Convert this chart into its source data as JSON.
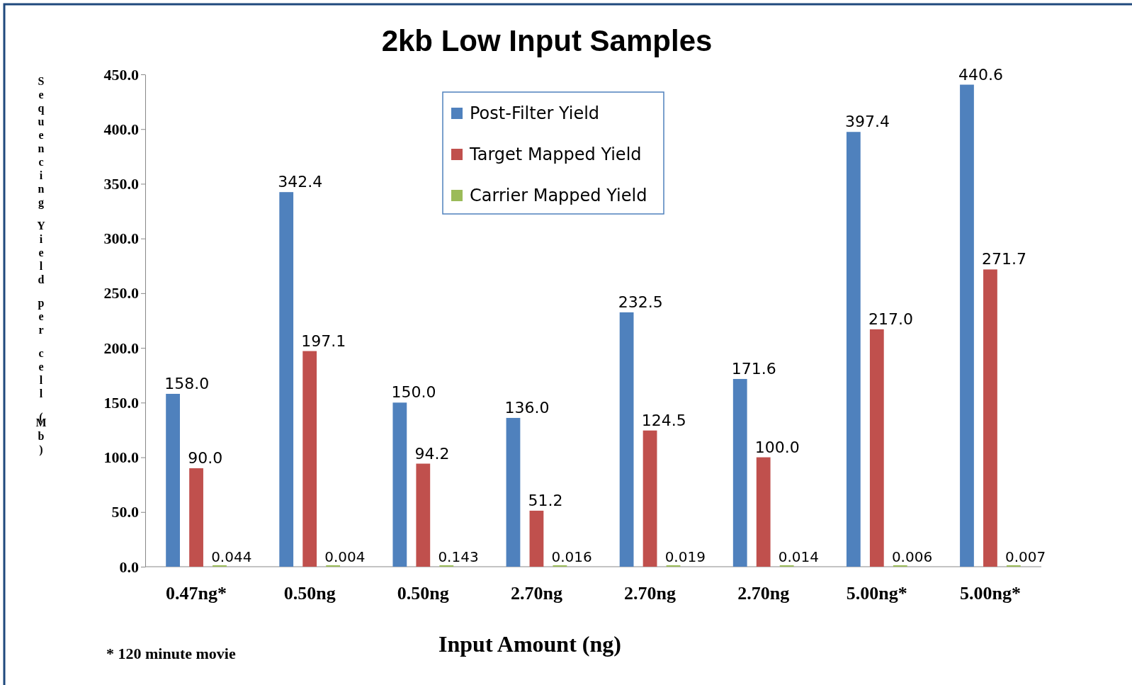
{
  "chart_data": {
    "type": "bar",
    "title": "2kb Low Input Samples",
    "xlabel": "Input Amount (ng)",
    "ylabel": "Sequencing Yield per cell (Mb)",
    "categories": [
      "0.47ng*",
      "0.50ng",
      "0.50ng",
      "2.70ng",
      "2.70ng",
      "2.70ng",
      "5.00ng*",
      "5.00ng*"
    ],
    "series": [
      {
        "name": "Post-Filter Yield",
        "color": "#4f81bd",
        "values": [
          158.0,
          342.4,
          150.0,
          136.0,
          232.5,
          171.6,
          397.4,
          440.6
        ],
        "value_labels": [
          "158.0",
          "342.4",
          "150.0",
          "136.0",
          "232.5",
          "171.6",
          "397.4",
          "440.6"
        ]
      },
      {
        "name": "Target Mapped Yield",
        "color": "#c0504d",
        "values": [
          90.0,
          197.1,
          94.2,
          51.2,
          124.5,
          100.0,
          217.0,
          271.7
        ],
        "value_labels": [
          "90.0",
          "197.1",
          "94.2",
          "51.2",
          "124.5",
          "100.0",
          "217.0",
          "271.7"
        ]
      },
      {
        "name": "Carrier Mapped Yield",
        "color": "#9bbb59",
        "values": [
          0.044,
          0.004,
          0.143,
          0.016,
          0.019,
          0.014,
          0.006,
          0.007
        ],
        "value_labels": [
          "0.044",
          "0.004",
          "0.143",
          "0.016",
          "0.019",
          "0.014",
          "0.006",
          "0.007"
        ]
      }
    ],
    "ylim": [
      0,
      450
    ],
    "yticks": [
      {
        "value": 0,
        "label": "0.0"
      },
      {
        "value": 50,
        "label": "50.0"
      },
      {
        "value": 100,
        "label": "100.0"
      },
      {
        "value": 150,
        "label": "150.0"
      },
      {
        "value": 200,
        "label": "200.0"
      },
      {
        "value": 250,
        "label": "250.0"
      },
      {
        "value": 300,
        "label": "300.0"
      },
      {
        "value": 350,
        "label": "350.0"
      },
      {
        "value": 400,
        "label": "400.0"
      },
      {
        "value": 450,
        "label": "450.0"
      }
    ],
    "grid": false,
    "legend": "top",
    "annotations": [
      "* 120 minute movie"
    ]
  }
}
